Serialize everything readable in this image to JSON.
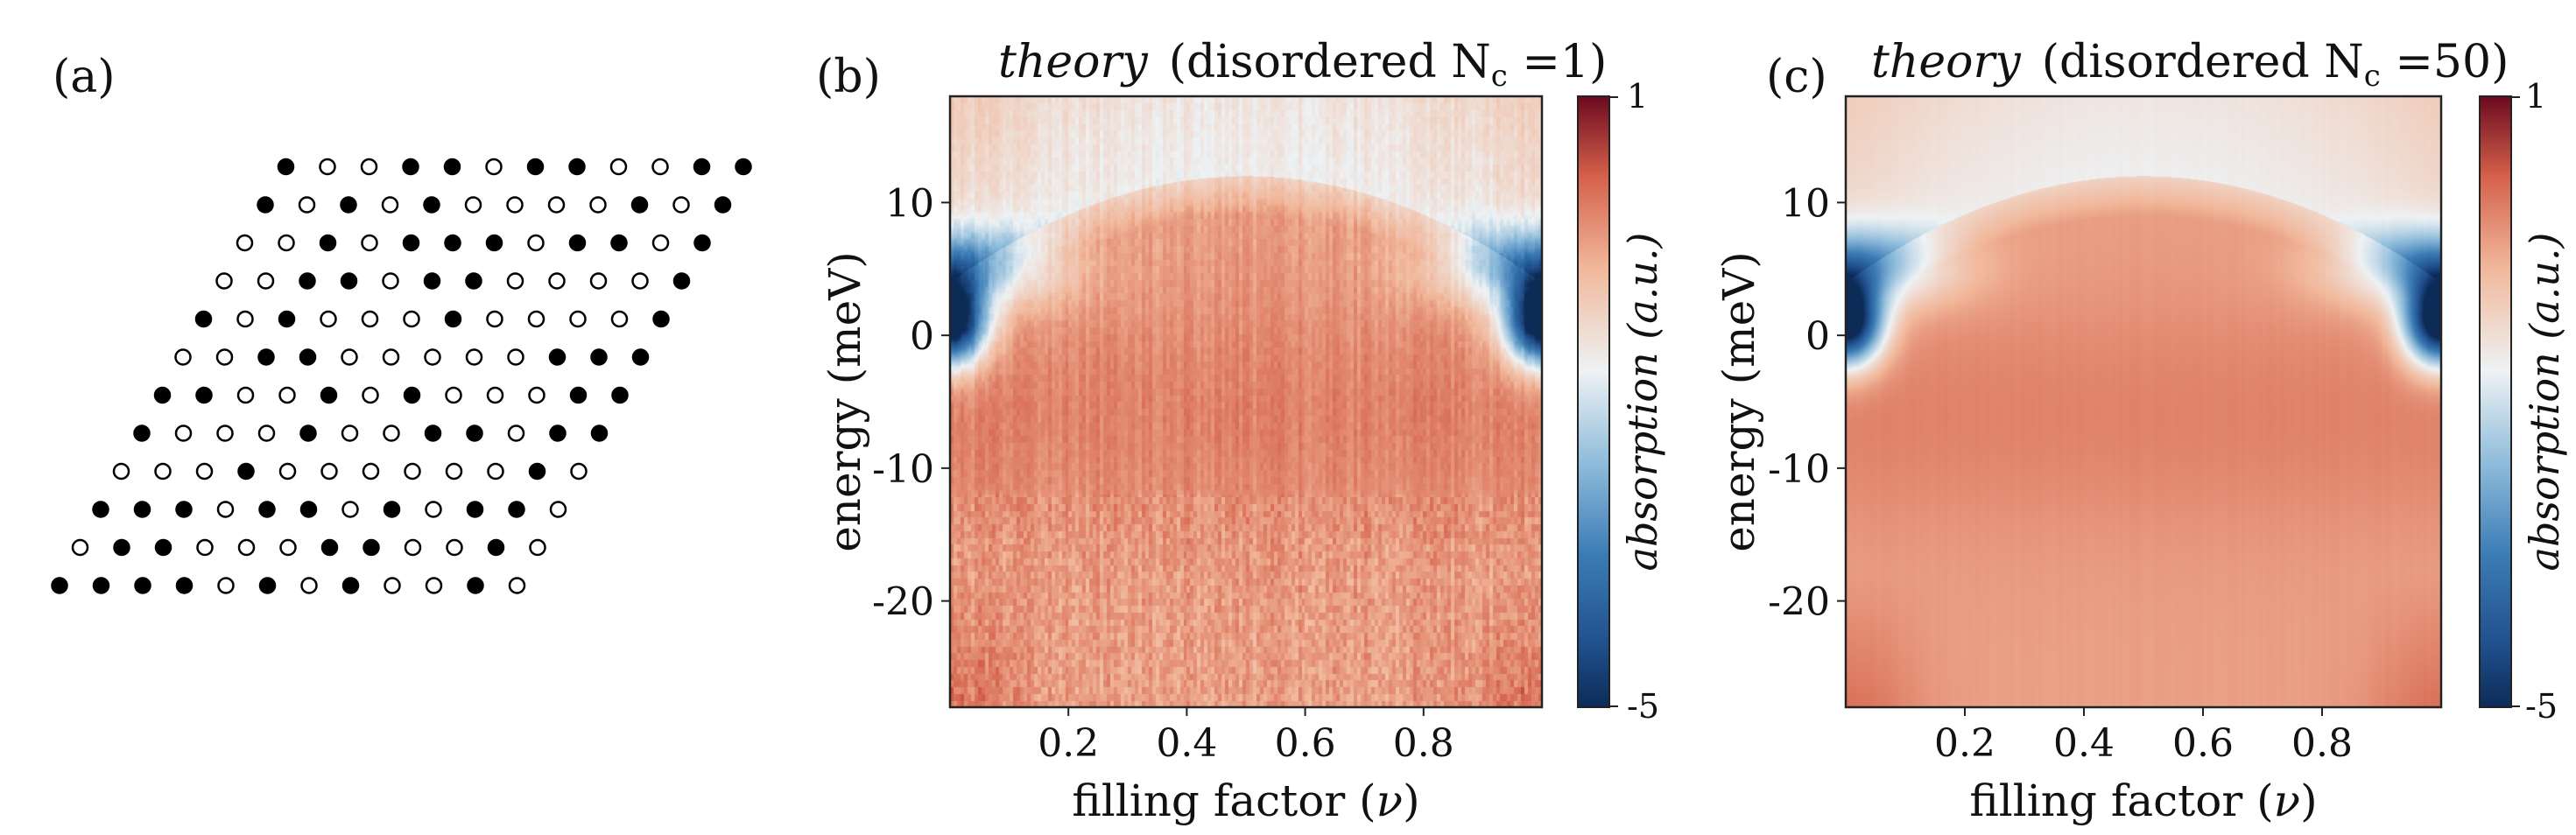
{
  "panel_a": {
    "label": "(a)",
    "lattice_rows": [
      "●○○●●○●●○○●●",
      "●○●○●○○○○●○●",
      "○○●○●●●○●●○●",
      "○○●●○●●○○○○●",
      "●○●○○○●○○○○●",
      "○○●●○○○○○●●●",
      "●●○○●○●○○○●●",
      "●○○○●○○●●○●●",
      "○○○●○○○○○○●○",
      "●●●○●●○●○●●○",
      "○●●○○○●●○○●○",
      "●●●●○●○●○○●○"
    ]
  },
  "chart_data": [
    {
      "type": "heatmap",
      "panel_label": "(b)",
      "title_italic": "theory",
      "title_rest": "(disordered N",
      "title_sub": "c",
      "title_end": " =1)",
      "xlabel": "filling factor (",
      "xlabel_symbol": "ν",
      "xlabel_end": ")",
      "ylabel": "energy (meV)",
      "x_ticks": [
        "0.2",
        "0.4",
        "0.6",
        "0.8"
      ],
      "x_tick_values": [
        0.2,
        0.4,
        0.6,
        0.8
      ],
      "y_ticks": [
        "10",
        "0",
        "-10",
        "-20"
      ],
      "y_tick_values": [
        10,
        0,
        -10,
        -20
      ],
      "xlim": [
        0.0,
        1.0
      ],
      "ylim": [
        -28,
        18
      ],
      "colorbar": {
        "label": "absorption (a.u.)",
        "max_label": "1",
        "min_label": "-5",
        "range": [
          -5,
          1
        ]
      },
      "disorder_noise": "strong"
    },
    {
      "type": "heatmap",
      "panel_label": "(c)",
      "title_italic": "theory",
      "title_rest": "(disordered N",
      "title_sub": "c",
      "title_end": " =50)",
      "xlabel": "filling factor (",
      "xlabel_symbol": "ν",
      "xlabel_end": ")",
      "ylabel": "energy (meV)",
      "x_ticks": [
        "0.2",
        "0.4",
        "0.6",
        "0.8"
      ],
      "x_tick_values": [
        0.2,
        0.4,
        0.6,
        0.8
      ],
      "y_ticks": [
        "10",
        "0",
        "-10",
        "-20"
      ],
      "y_tick_values": [
        10,
        0,
        -10,
        -20
      ],
      "xlim": [
        0.0,
        1.0
      ],
      "ylim": [
        -28,
        18
      ],
      "colorbar": {
        "label": "absorption (a.u.)",
        "max_label": "1",
        "min_label": "-5",
        "range": [
          -5,
          1
        ]
      },
      "disorder_noise": "weak"
    }
  ]
}
